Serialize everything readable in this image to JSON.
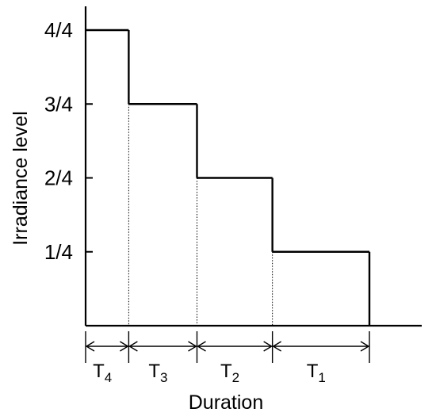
{
  "chart_data": {
    "type": "step",
    "title": "",
    "xlabel": "Duration",
    "ylabel": "Irradiance level",
    "y_tick_labels": [
      "1/4",
      "2/4",
      "3/4",
      "4/4"
    ],
    "ylim": [
      0,
      1
    ],
    "grid": false,
    "segments": [
      {
        "label_main": "T",
        "label_sub": "4",
        "level": 1.0,
        "duration": 0.6
      },
      {
        "label_main": "T",
        "label_sub": "3",
        "level": 0.75,
        "duration": 0.95
      },
      {
        "label_main": "T",
        "label_sub": "2",
        "level": 0.5,
        "duration": 1.05
      },
      {
        "label_main": "T",
        "label_sub": "1",
        "level": 0.25,
        "duration": 1.35
      }
    ]
  }
}
